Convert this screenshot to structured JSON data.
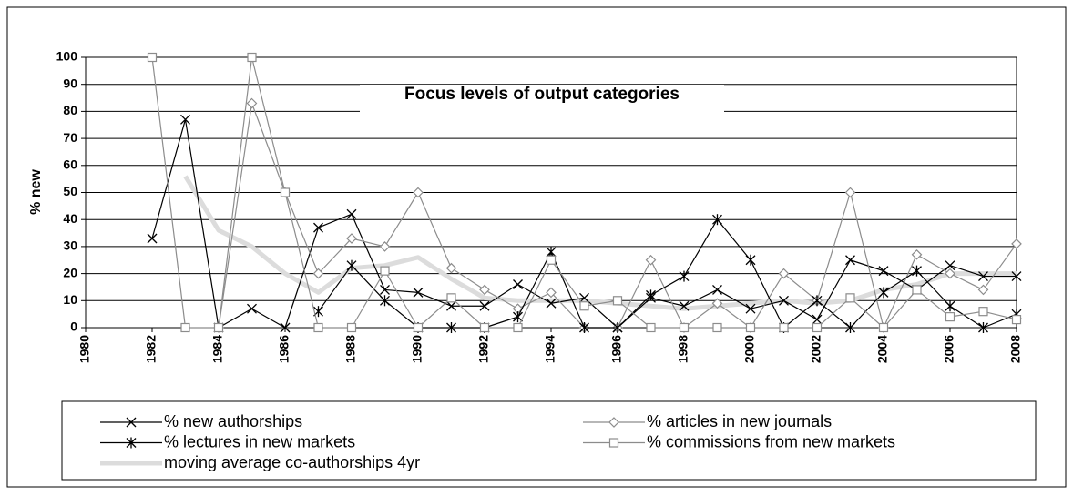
{
  "chart_data": {
    "type": "line",
    "title": "Focus levels of output categories",
    "y_label": "% new",
    "x": [
      1980,
      1981,
      1982,
      1983,
      1984,
      1985,
      1986,
      1987,
      1988,
      1989,
      1990,
      1991,
      1992,
      1993,
      1994,
      1995,
      1996,
      1997,
      1998,
      1999,
      2000,
      2001,
      2002,
      2003,
      2004,
      2005,
      2006,
      2007,
      2008
    ],
    "xlim": [
      1980,
      2008
    ],
    "xticks": [
      1980,
      1982,
      1984,
      1986,
      1988,
      1990,
      1992,
      1994,
      1996,
      1998,
      2000,
      2002,
      2004,
      2006,
      2008
    ],
    "ylim": [
      0,
      100
    ],
    "yticks": [
      0,
      10,
      20,
      30,
      40,
      50,
      60,
      70,
      80,
      90,
      100
    ],
    "grid": true,
    "legend": "bottom",
    "series": [
      {
        "name": "% new authorships",
        "color": "#000000",
        "marker": "x",
        "width": 1.2,
        "values": [
          null,
          null,
          33,
          77,
          0,
          7,
          0,
          37,
          42,
          14,
          13,
          8,
          8,
          16,
          9,
          11,
          0,
          11,
          8,
          14,
          7,
          10,
          3,
          25,
          21,
          14,
          23,
          19,
          19
        ]
      },
      {
        "name": "% articles in new journals",
        "color": "#8c8c8c",
        "marker": "diamond",
        "width": 1.2,
        "values": [
          null,
          null,
          null,
          null,
          0,
          83,
          50,
          20,
          33,
          30,
          50,
          22,
          14,
          7,
          13,
          0,
          0,
          25,
          0,
          9,
          0,
          20,
          10,
          50,
          0,
          27,
          20,
          14,
          31
        ]
      },
      {
        "name": "% lectures in new markets",
        "color": "#000000",
        "marker": "star",
        "width": 1.2,
        "values": [
          null,
          null,
          null,
          null,
          null,
          null,
          null,
          6,
          23,
          10,
          0,
          0,
          0,
          4,
          28,
          0,
          0,
          12,
          19,
          40,
          25,
          0,
          10,
          0,
          13,
          21,
          8,
          0,
          5
        ]
      },
      {
        "name": "% commissions from new markets",
        "color": "#8c8c8c",
        "marker": "square",
        "width": 1.2,
        "values": [
          null,
          null,
          100,
          0,
          0,
          100,
          50,
          0,
          0,
          21,
          0,
          11,
          0,
          0,
          25,
          8,
          10,
          0,
          0,
          0,
          0,
          0,
          0,
          11,
          0,
          14,
          4,
          6,
          3
        ]
      },
      {
        "name": "moving average co-authorships 4yr",
        "color": "#dcdcdc",
        "marker": "none",
        "width": 5,
        "values": [
          null,
          null,
          null,
          56,
          36,
          30,
          20,
          13,
          22,
          23,
          26,
          18,
          11,
          10,
          10,
          10,
          9,
          8,
          7,
          8,
          9,
          10,
          9,
          10,
          14,
          16,
          20,
          20,
          20
        ]
      }
    ]
  }
}
